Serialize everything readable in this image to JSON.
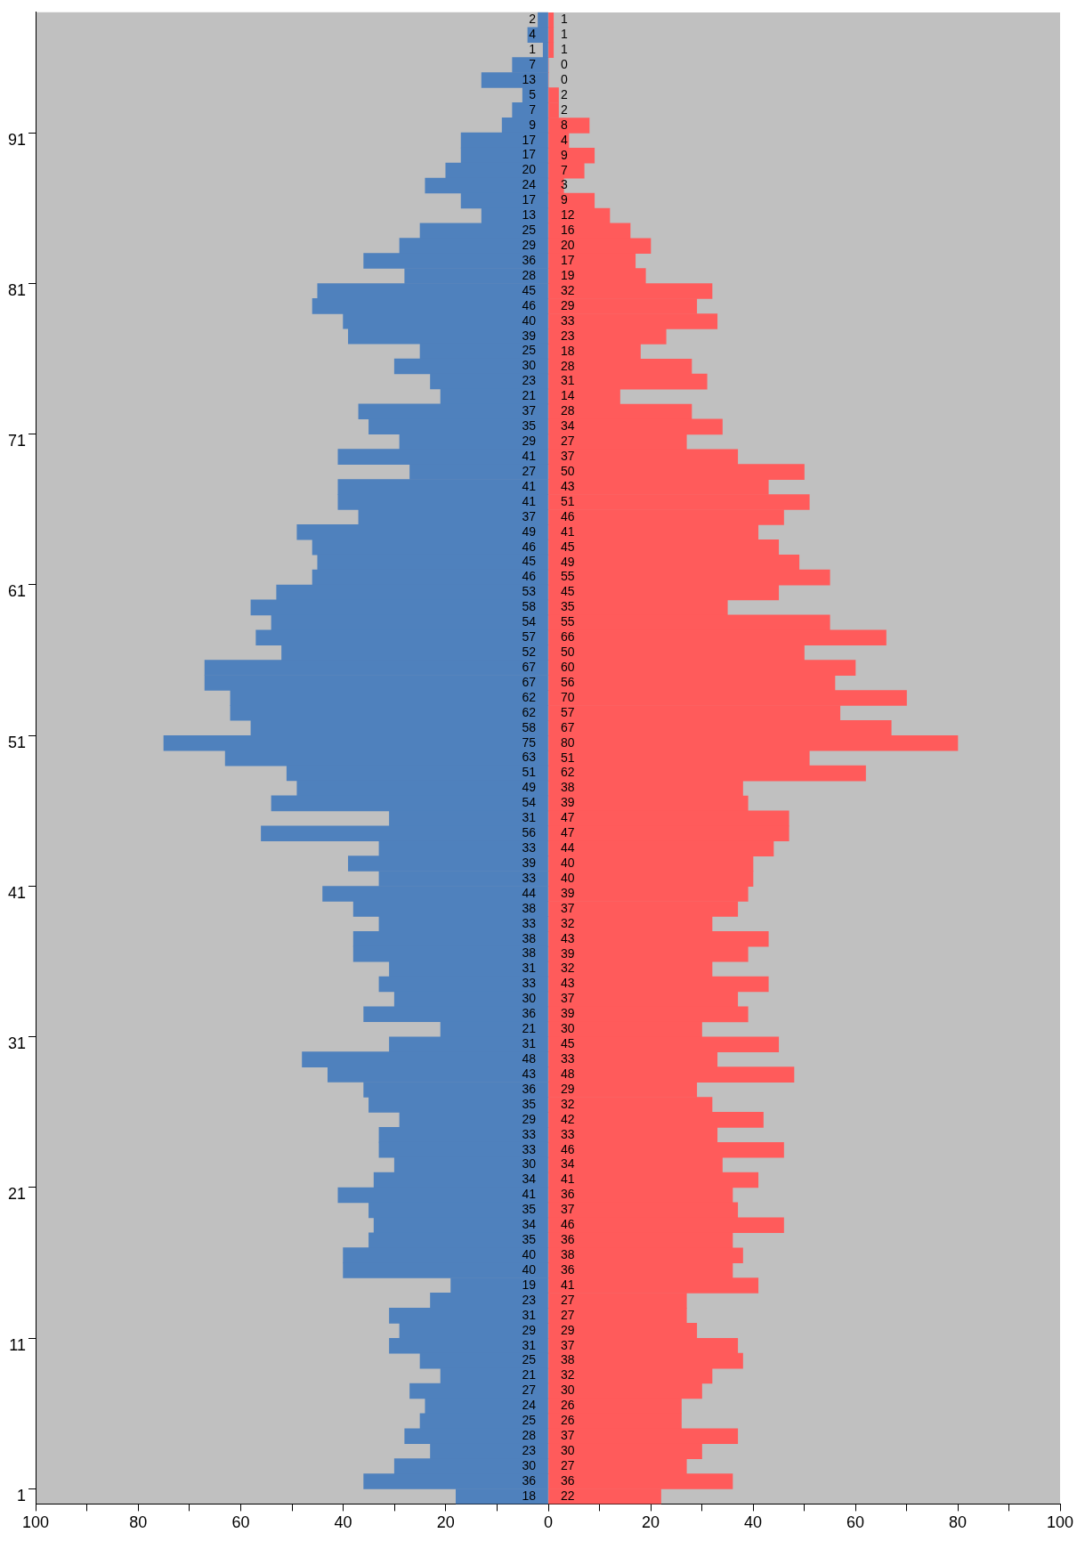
{
  "chart_data": [
    {
      "type": "bar",
      "orientation": "horizontal",
      "data_labels": true,
      "categories": [
        null,
        null,
        null,
        null,
        null,
        null,
        null,
        null,
        "91",
        null,
        null,
        null,
        null,
        null,
        null,
        null,
        null,
        null,
        "81",
        null,
        null,
        null,
        null,
        null,
        null,
        null,
        null,
        null,
        "71",
        null,
        null,
        null,
        null,
        null,
        null,
        null,
        null,
        null,
        "61",
        null,
        null,
        null,
        null,
        null,
        null,
        null,
        null,
        null,
        "51",
        null,
        null,
        null,
        null,
        null,
        null,
        null,
        null,
        null,
        "41",
        null,
        null,
        null,
        null,
        null,
        null,
        null,
        null,
        null,
        "31",
        null,
        null,
        null,
        null,
        null,
        null,
        null,
        null,
        null,
        "21",
        null,
        null,
        null,
        null,
        null,
        null,
        null,
        null,
        null,
        "11",
        null,
        null,
        null,
        null,
        null,
        null,
        null,
        null,
        null,
        "1"
      ],
      "xlim": [
        100,
        0
      ],
      "xticks": [
        100,
        {
          "value": 90,
          "label": null
        },
        80,
        {
          "value": 70,
          "label": null
        },
        60,
        {
          "value": 50,
          "label": null
        },
        40,
        {
          "value": 30,
          "label": null
        },
        20,
        {
          "value": 10,
          "label": null
        },
        0
      ],
      "series": [
        {
          "color": "#4f81bd",
          "values": [
            2,
            4,
            1,
            7,
            13,
            5,
            7,
            9,
            17,
            17,
            20,
            24,
            17,
            13,
            25,
            29,
            36,
            28,
            45,
            46,
            40,
            39,
            25,
            30,
            23,
            21,
            37,
            35,
            29,
            41,
            27,
            41,
            41,
            37,
            49,
            46,
            45,
            46,
            53,
            58,
            54,
            57,
            52,
            67,
            67,
            62,
            62,
            58,
            75,
            63,
            51,
            49,
            54,
            31,
            56,
            33,
            39,
            33,
            44,
            38,
            33,
            38,
            38,
            31,
            33,
            30,
            36,
            21,
            31,
            48,
            43,
            36,
            35,
            29,
            33,
            33,
            30,
            34,
            41,
            35,
            34,
            35,
            40,
            40,
            19,
            23,
            31,
            29,
            31,
            25,
            21,
            27,
            24,
            25,
            28,
            23,
            30,
            36,
            18
          ]
        }
      ]
    },
    {
      "type": "bar",
      "orientation": "horizontal",
      "data_labels": true,
      "tick_labels": "x",
      "categories": [
        null,
        null,
        null,
        null,
        null,
        null,
        null,
        null,
        "91",
        null,
        null,
        null,
        null,
        null,
        null,
        null,
        null,
        null,
        "81",
        null,
        null,
        null,
        null,
        null,
        null,
        null,
        null,
        null,
        "71",
        null,
        null,
        null,
        null,
        null,
        null,
        null,
        null,
        null,
        "61",
        null,
        null,
        null,
        null,
        null,
        null,
        null,
        null,
        null,
        "51",
        null,
        null,
        null,
        null,
        null,
        null,
        null,
        null,
        null,
        "41",
        null,
        null,
        null,
        null,
        null,
        null,
        null,
        null,
        null,
        "31",
        null,
        null,
        null,
        null,
        null,
        null,
        null,
        null,
        null,
        "21",
        null,
        null,
        null,
        null,
        null,
        null,
        null,
        null,
        null,
        "11",
        null,
        null,
        null,
        null,
        null,
        null,
        null,
        null,
        null,
        "1"
      ],
      "xlim": [
        0,
        100
      ],
      "xticks": [
        {
          "value": 0,
          "label": null
        },
        {
          "value": 10,
          "label": null
        },
        20,
        {
          "value": 30,
          "label": null
        },
        40,
        {
          "value": 50,
          "label": null
        },
        60,
        {
          "value": 70,
          "label": null
        },
        80,
        {
          "value": 90,
          "label": null
        },
        100
      ],
      "series": [
        {
          "color": "#ff5b5b",
          "values": [
            1,
            1,
            1,
            0,
            0,
            2,
            2,
            8,
            4,
            9,
            7,
            3,
            9,
            12,
            16,
            20,
            17,
            19,
            32,
            29,
            33,
            23,
            18,
            28,
            31,
            14,
            28,
            34,
            27,
            37,
            50,
            43,
            51,
            46,
            41,
            45,
            49,
            55,
            45,
            35,
            55,
            66,
            50,
            60,
            56,
            70,
            57,
            67,
            80,
            51,
            62,
            38,
            39,
            47,
            47,
            44,
            40,
            40,
            39,
            37,
            32,
            43,
            39,
            32,
            43,
            37,
            39,
            30,
            45,
            33,
            48,
            29,
            32,
            42,
            33,
            46,
            34,
            41,
            36,
            37,
            46,
            36,
            38,
            36,
            41,
            27,
            27,
            29,
            37,
            38,
            32,
            30,
            26,
            26,
            37,
            30,
            27,
            36,
            22
          ]
        }
      ]
    }
  ]
}
